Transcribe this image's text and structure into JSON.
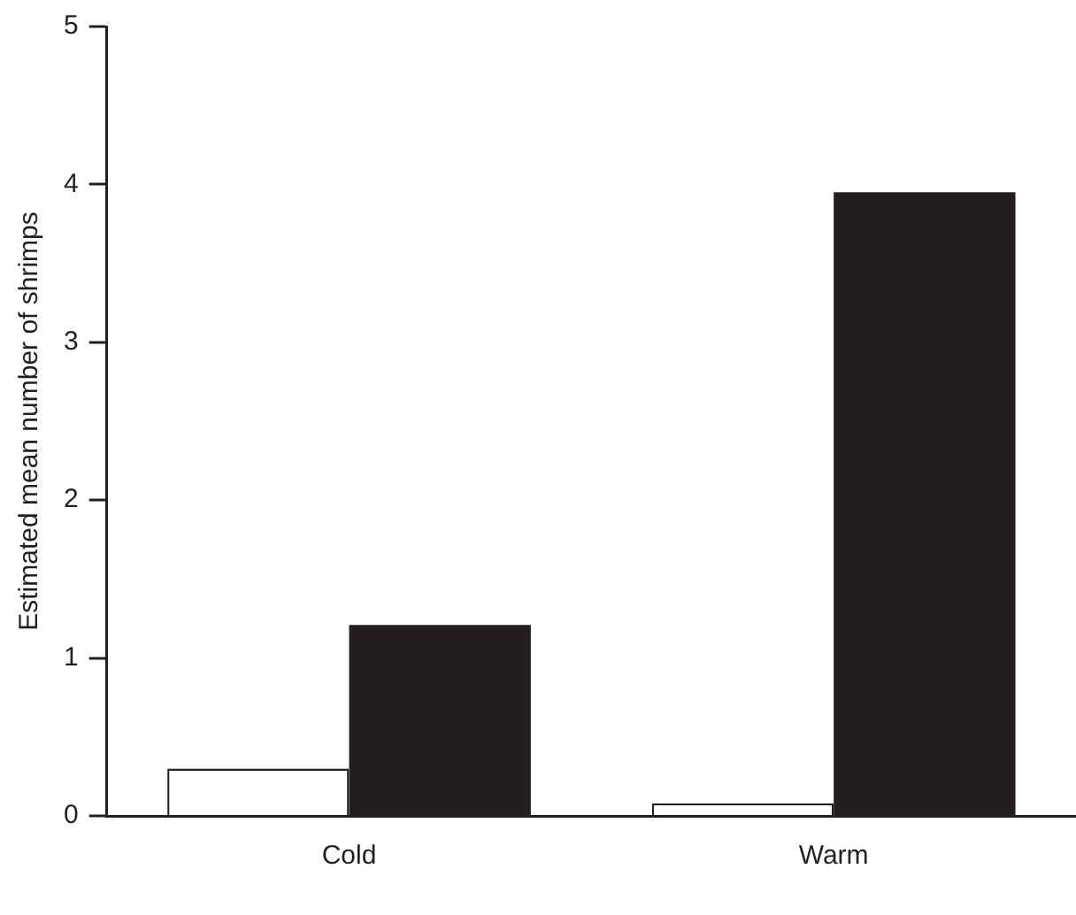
{
  "chart_data": {
    "type": "bar",
    "ylabel": "Estimated mean number of shrimps",
    "categories": [
      "Cold",
      "Warm"
    ],
    "series": [
      {
        "color": "#ffffff",
        "values": [
          0.3,
          0.08
        ]
      },
      {
        "color": "#231f20",
        "values": [
          1.21,
          3.95
        ]
      }
    ],
    "ylim": [
      0,
      5
    ],
    "yticks": [
      0,
      1,
      2,
      3,
      4,
      5
    ],
    "grid": false,
    "legend": false
  }
}
